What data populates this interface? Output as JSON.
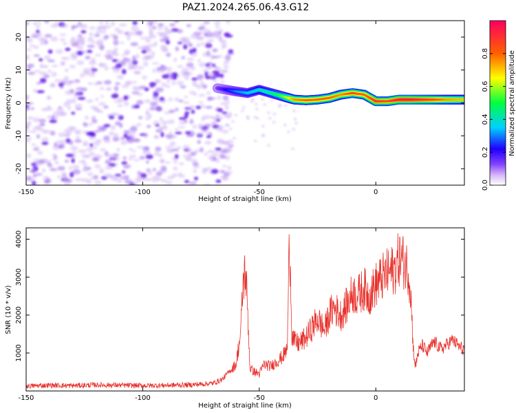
{
  "figure": {
    "title": "PAZ1.2024.265.06.43.G12"
  },
  "chart_data": [
    {
      "type": "heatmap",
      "xlabel": "Height of straight line (km)",
      "ylabel": "Frequency (Hz)",
      "xlim": [
        -150,
        38
      ],
      "ylim": [
        -25,
        25
      ],
      "xticks": [
        -150,
        -100,
        -50,
        0
      ],
      "yticks": [
        -20,
        -10,
        0,
        10,
        20
      ],
      "colorbar": {
        "label": "Normalized spectral amplitude",
        "range": [
          0,
          1
        ],
        "ticks": [
          0.0,
          0.2,
          0.4,
          0.6,
          0.8
        ],
        "colors": [
          "#ffffff",
          "#d8b8f8",
          "#8040ff",
          "#2000ff",
          "#00d0ff",
          "#00ff40",
          "#ffff00",
          "#ff6000",
          "#ff0060"
        ]
      },
      "noise_region": {
        "x": [
          -150,
          -62
        ],
        "y": [
          -25,
          25
        ],
        "level": 0.2
      },
      "ridge": {
        "x": [
          -68,
          -60,
          -55,
          -50,
          -45,
          -40,
          -35,
          -30,
          -25,
          -20,
          -15,
          -10,
          -5,
          0,
          5,
          10,
          15,
          20,
          25,
          30,
          38
        ],
        "y": [
          4.5,
          3.5,
          3.0,
          4.0,
          3.0,
          2.0,
          1.0,
          0.8,
          1.0,
          1.5,
          2.5,
          3.0,
          2.5,
          0.5,
          0.5,
          1.0,
          1.0,
          1.0,
          1.0,
          1.0,
          1.0
        ],
        "amplitude": [
          0.15,
          0.3,
          0.35,
          0.4,
          0.45,
          0.55,
          0.75,
          0.8,
          0.8,
          0.8,
          0.75,
          0.85,
          0.8,
          0.9,
          0.85,
          0.95,
          0.95,
          0.9,
          0.85,
          0.75,
          0.7
        ]
      }
    },
    {
      "type": "line",
      "xlabel": "Height of straight line (km)",
      "ylabel": "SNR (10 * v/v)",
      "xlim": [
        -150,
        38
      ],
      "ylim": [
        0,
        4300
      ],
      "xticks": [
        -150,
        -100,
        -50,
        0
      ],
      "yticks": [
        1000,
        2000,
        3000,
        4000
      ],
      "color": "#e8302a",
      "series": [
        {
          "x": [
            -150,
            -140,
            -130,
            -120,
            -110,
            -100,
            -90,
            -80,
            -75,
            -70,
            -66,
            -63,
            -60,
            -58,
            -57,
            -56,
            -55,
            -54,
            -52,
            -50,
            -48,
            -45,
            -42,
            -40,
            -38,
            -37,
            -36,
            -35,
            -33,
            -30,
            -27,
            -25,
            -22,
            -20,
            -18,
            -15,
            -12,
            -10,
            -8,
            -5,
            -3,
            0,
            3,
            5,
            8,
            10,
            12,
            14,
            15,
            16,
            17,
            18,
            20,
            22,
            25,
            28,
            30,
            33,
            36,
            38
          ],
          "y": [
            130,
            150,
            140,
            160,
            150,
            140,
            150,
            160,
            180,
            200,
            300,
            500,
            700,
            1500,
            2800,
            3200,
            2200,
            600,
            500,
            450,
            700,
            650,
            800,
            900,
            1100,
            4200,
            1500,
            1300,
            1250,
            1400,
            1700,
            1900,
            1600,
            2000,
            2200,
            2000,
            2300,
            2600,
            2500,
            2700,
            2500,
            2800,
            3000,
            3100,
            3200,
            3500,
            3400,
            3200,
            2600,
            1200,
            600,
            1000,
            1200,
            1000,
            1300,
            1100,
            1200,
            1350,
            1150,
            1100
          ]
        }
      ]
    }
  ]
}
